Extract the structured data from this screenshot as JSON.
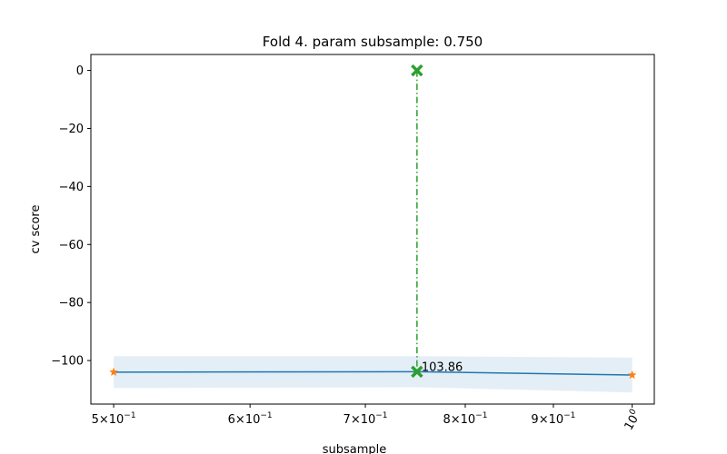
{
  "chart_data": {
    "type": "line",
    "title": "Fold 4. param subsample: 0.750",
    "xlabel": "subsample",
    "ylabel": "cv score",
    "xscale": "log",
    "xlim": [
      0.485,
      1.03
    ],
    "ylim": [
      -115,
      5.5
    ],
    "grid": false,
    "x_ticks": [
      {
        "value": 0.5,
        "base": "5×10",
        "exp": "−1"
      },
      {
        "value": 0.6,
        "base": "6×10",
        "exp": "−1"
      },
      {
        "value": 0.7,
        "base": "7×10",
        "exp": "−1"
      },
      {
        "value": 0.8,
        "base": "8×10",
        "exp": "−1"
      },
      {
        "value": 0.9,
        "base": "9×10",
        "exp": "−1"
      },
      {
        "value": 1.0,
        "base": "10",
        "exp": "0",
        "rotated": true
      }
    ],
    "y_ticks": [
      {
        "value": 0,
        "label": "0"
      },
      {
        "value": -20,
        "label": "−20"
      },
      {
        "value": -40,
        "label": "−40"
      },
      {
        "value": -60,
        "label": "−60"
      },
      {
        "value": -80,
        "label": "−80"
      },
      {
        "value": -100,
        "label": "−100"
      }
    ],
    "series": [
      {
        "kind": "mean",
        "x": [
          0.5,
          0.75,
          1.0
        ],
        "y": [
          -104.0,
          -103.86,
          -105.0
        ],
        "color": "#1f77b4"
      },
      {
        "kind": "band",
        "x": [
          0.5,
          0.75,
          1.0
        ],
        "upper": [
          -98.5,
          -98.5,
          -99.0
        ],
        "lower": [
          -109.5,
          -109.2,
          -111.0
        ],
        "color": "#1f77b4",
        "alpha": 0.12
      },
      {
        "kind": "points",
        "x": [
          0.5,
          1.0
        ],
        "y": [
          -104.0,
          -105.0
        ],
        "marker": "star",
        "color": "#ff7f0e"
      }
    ],
    "selected": {
      "x": 0.75,
      "y_top": 0,
      "y_bottom": -103.86,
      "color": "#2ca02c",
      "linestyle": "dashdot",
      "marker": "x",
      "annotation": "103.86"
    }
  }
}
